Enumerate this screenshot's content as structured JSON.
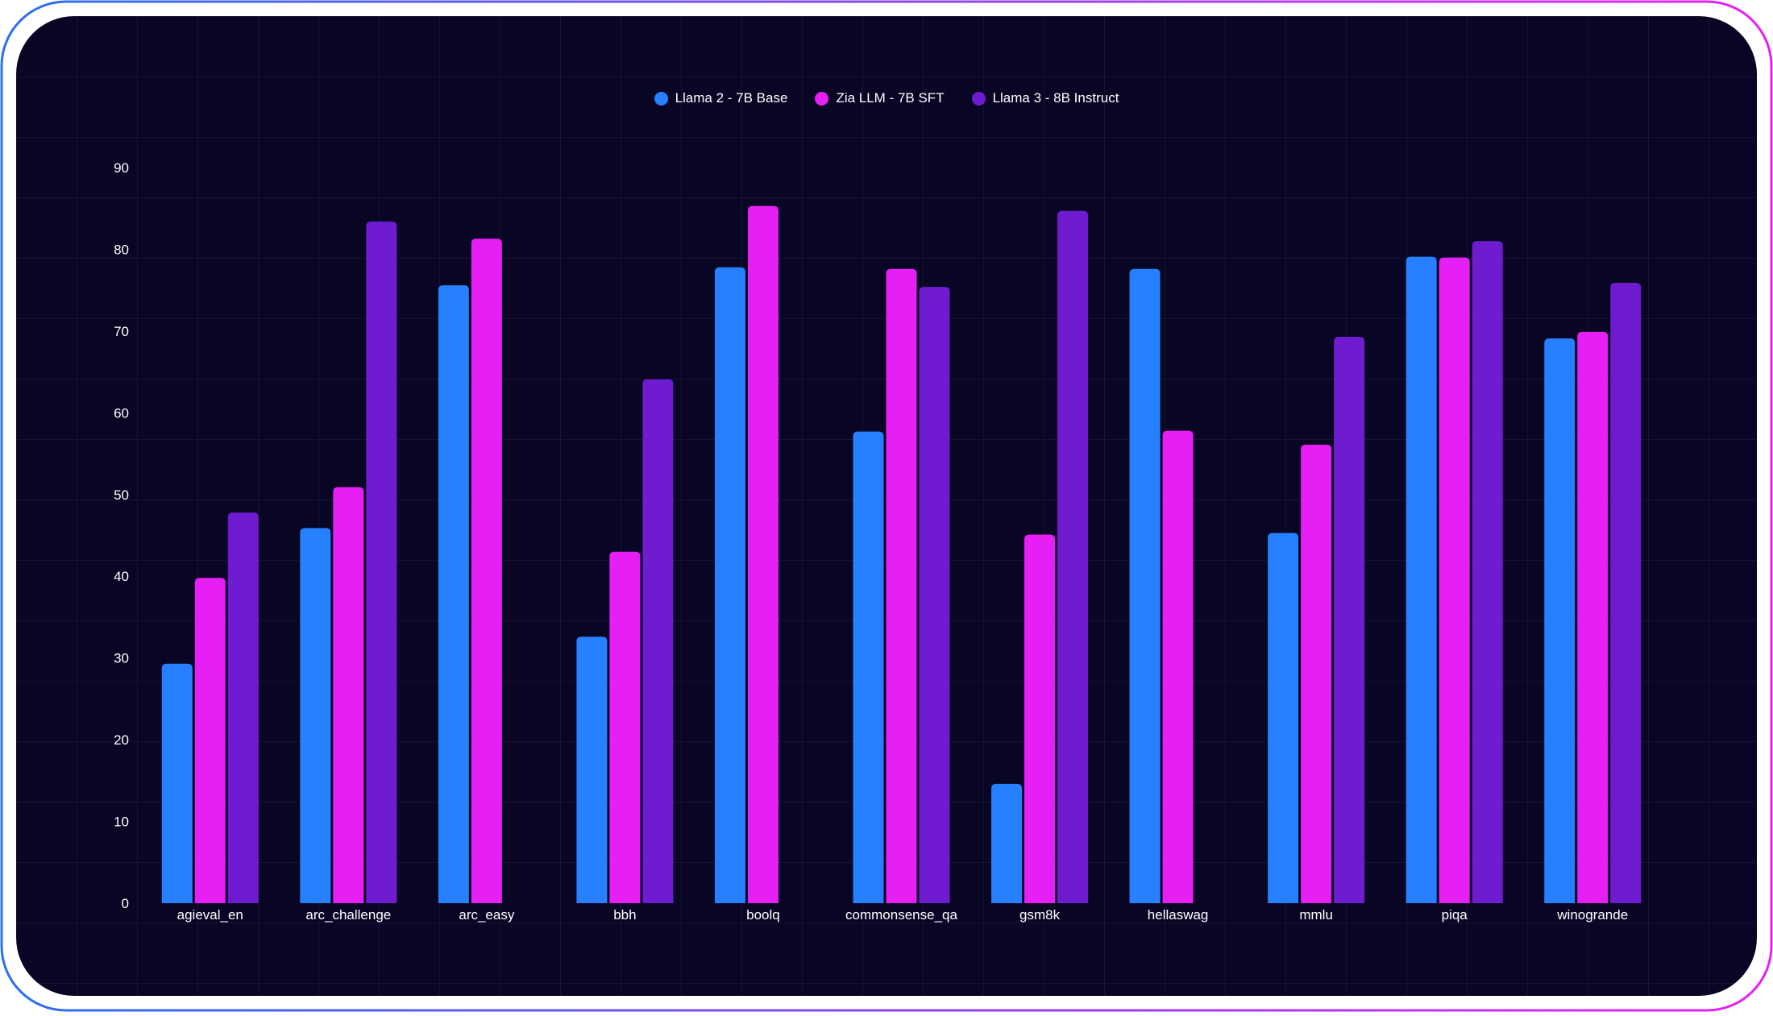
{
  "chart_data": {
    "type": "bar",
    "title": "",
    "xlabel": "",
    "ylabel": "",
    "ylim": [
      0,
      90
    ],
    "yticks": [
      0,
      10,
      20,
      30,
      40,
      50,
      60,
      70,
      80,
      90
    ],
    "grid": true,
    "legend_position": "top-center",
    "categories": [
      "agieval_en",
      "arc_challenge",
      "arc_easy",
      "bbh",
      "boolq",
      "commonsense_qa",
      "gsm8k",
      "hellaswag",
      "mmlu",
      "piqa",
      "winogrande"
    ],
    "series": [
      {
        "name": "Llama 2 - 7B Base",
        "color": "#2680ff",
        "values": [
          29.3,
          45.9,
          75.6,
          32.6,
          77.8,
          57.7,
          14.6,
          77.6,
          45.3,
          79.1,
          69.1
        ]
      },
      {
        "name": "Zia LLM - 7B SFT",
        "color": "#e61ff4",
        "values": [
          39.8,
          50.9,
          81.3,
          43.0,
          85.3,
          77.6,
          45.1,
          57.8,
          56.1,
          79.0,
          69.9
        ]
      },
      {
        "name": "Llama 3 - 8B Instruct",
        "color": "#6f1cd0",
        "values": [
          47.8,
          83.4,
          null,
          64.1,
          null,
          75.4,
          84.7,
          null,
          69.3,
          81.0,
          75.9
        ]
      }
    ]
  }
}
